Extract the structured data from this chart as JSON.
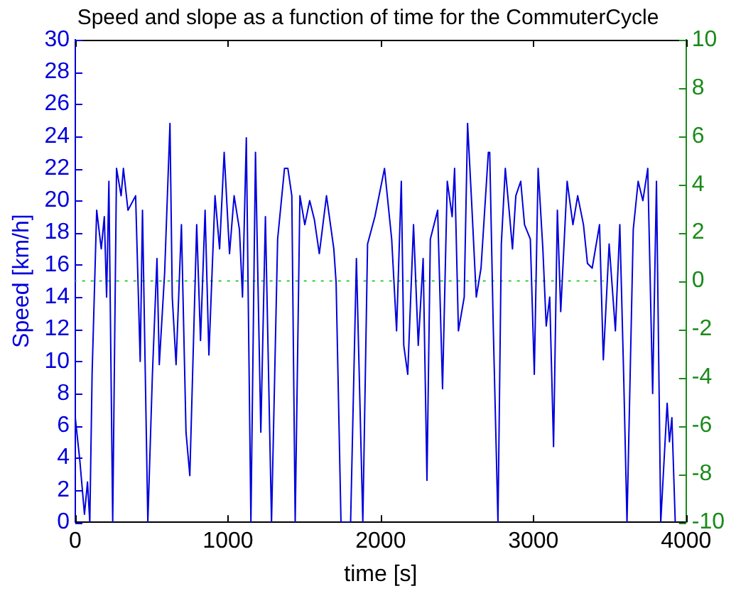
{
  "chart_data": {
    "type": "line",
    "title": "Speed and slope as a function of time for the CommuterCycle",
    "xlabel": "time [s]",
    "ylabel": "Speed [km/h]",
    "xlim": [
      0,
      4000
    ],
    "xticks": [
      0,
      1000,
      2000,
      3000,
      4000
    ],
    "ylim": [
      0,
      30
    ],
    "yticks": [
      0,
      2,
      4,
      6,
      8,
      10,
      12,
      14,
      16,
      18,
      20,
      22,
      24,
      26,
      28,
      30
    ],
    "y2lim": [
      -10,
      10
    ],
    "y2ticks": [
      -10,
      -8,
      -6,
      -4,
      -2,
      0,
      2,
      4,
      6,
      8,
      10
    ],
    "grid": false,
    "legend": false,
    "marker": "none",
    "series": [
      {
        "color": "#0000dd",
        "line_style": "solid",
        "x": [
          0,
          30,
          60,
          80,
          95,
          110,
          140,
          170,
          190,
          205,
          220,
          245,
          270,
          300,
          315,
          345,
          395,
          425,
          440,
          475,
          505,
          535,
          550,
          585,
          620,
          635,
          660,
          695,
          725,
          750,
          795,
          820,
          850,
          875,
          915,
          945,
          975,
          1010,
          1040,
          1075,
          1095,
          1120,
          1150,
          1180,
          1215,
          1245,
          1285,
          1325,
          1370,
          1392,
          1418,
          1440,
          1471,
          1503,
          1535,
          1566,
          1598,
          1645,
          1693,
          1708,
          1740,
          1772,
          1803,
          1841,
          1883,
          1914,
          1962,
          2025,
          2072,
          2104,
          2135,
          2151,
          2177,
          2215,
          2246,
          2278,
          2303,
          2325,
          2373,
          2405,
          2436,
          2468,
          2484,
          2509,
          2547,
          2569,
          2595,
          2626,
          2657,
          2705,
          2714,
          2737,
          2768,
          2790,
          2816,
          2841,
          2863,
          2885,
          2917,
          2942,
          2980,
          3006,
          3031,
          3062,
          3084,
          3107,
          3132,
          3157,
          3179,
          3221,
          3259,
          3290,
          3328,
          3354,
          3385,
          3433,
          3458,
          3496,
          3537,
          3566,
          3591,
          3613,
          3654,
          3686,
          3717,
          3749,
          3781,
          3806,
          3834,
          3876,
          3891,
          3907,
          3929
        ],
        "values": [
          6.5,
          3.8,
          0.5,
          2.5,
          0,
          9.2,
          19.4,
          17,
          19,
          14,
          21.2,
          0,
          22,
          20.3,
          22,
          19.4,
          20.3,
          10,
          19.4,
          0,
          9.2,
          16.4,
          9.8,
          15.5,
          24.8,
          14,
          9.8,
          18.5,
          5.6,
          2.9,
          18.5,
          11.3,
          19.4,
          10.4,
          20.3,
          17,
          23,
          16.7,
          20.3,
          18.2,
          14,
          23.9,
          0,
          23,
          5.6,
          19,
          0,
          17.6,
          22,
          22,
          20.3,
          0,
          20.3,
          18.5,
          20,
          18.8,
          16.7,
          20.3,
          17,
          14.9,
          0,
          0,
          0,
          16.4,
          0,
          17.3,
          19,
          22,
          17.6,
          11.9,
          21.2,
          11,
          9.2,
          18.5,
          11,
          16.4,
          2.6,
          17.6,
          19.4,
          8.3,
          21.2,
          19,
          22,
          11.9,
          14,
          24.8,
          20,
          14,
          15.8,
          23,
          23,
          12.2,
          0,
          17.3,
          22,
          19.4,
          17,
          20.3,
          21.2,
          18.5,
          17.6,
          9.2,
          22,
          17,
          12.2,
          14,
          4.7,
          19.4,
          13.1,
          21.2,
          18.5,
          20.3,
          18.5,
          16.1,
          15.8,
          18.5,
          10.1,
          17.3,
          11.9,
          18.5,
          9.2,
          0,
          18.2,
          21.2,
          20,
          22,
          8,
          21.2,
          0,
          7.4,
          5,
          6.5,
          0
        ]
      },
      {
        "color": "#33cc33",
        "axis": "y2",
        "line_style": "dotted",
        "x": [
          0,
          3460
        ],
        "values": [
          0,
          0
        ]
      }
    ]
  }
}
